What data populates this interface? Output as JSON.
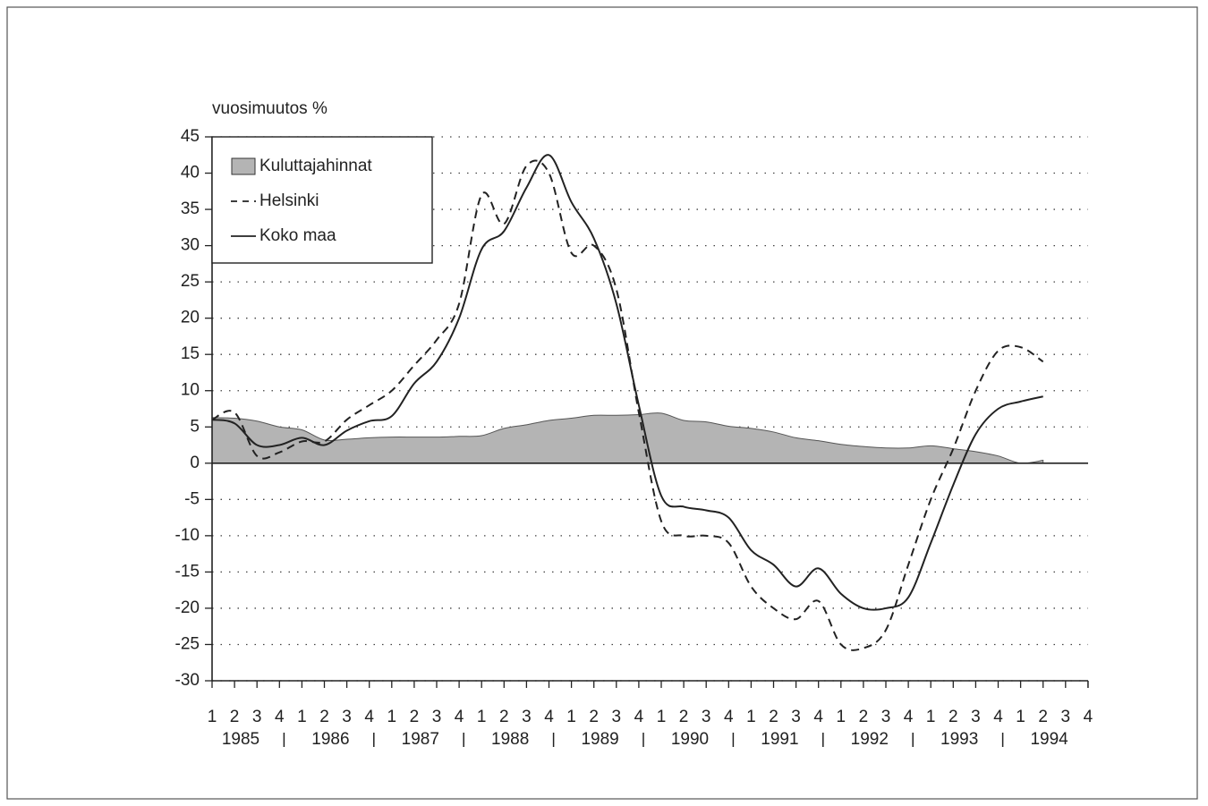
{
  "chart_data": {
    "type": "line",
    "ylabel": "vuosimuutos %",
    "categories": [
      "1",
      "2",
      "3",
      "4",
      "1",
      "2",
      "3",
      "4",
      "1",
      "2",
      "3",
      "4",
      "1",
      "2",
      "3",
      "4",
      "1",
      "2",
      "3",
      "4",
      "1",
      "2",
      "3",
      "4",
      "1",
      "2",
      "3",
      "4",
      "1",
      "2",
      "3",
      "4",
      "1",
      "2",
      "3",
      "4",
      "1",
      "2",
      "3",
      "4"
    ],
    "years": [
      "1985",
      "1986",
      "1987",
      "1988",
      "1989",
      "1990",
      "1991",
      "1992",
      "1993",
      "1994"
    ],
    "ylim": [
      -30,
      45
    ],
    "yticks": [
      -30,
      -25,
      -20,
      -15,
      -10,
      -5,
      0,
      5,
      10,
      15,
      20,
      25,
      30,
      35,
      40,
      45
    ],
    "grid": true,
    "legend": "upper left",
    "series": [
      {
        "name": "Kuluttajahinnat",
        "style": "area",
        "color": "#b4b4b4",
        "values": [
          6.3,
          6.2,
          5.8,
          5.0,
          4.6,
          3.2,
          3.3,
          3.5,
          3.6,
          3.6,
          3.6,
          3.7,
          3.8,
          4.8,
          5.3,
          5.9,
          6.2,
          6.6,
          6.6,
          6.7,
          6.9,
          5.9,
          5.7,
          5.1,
          4.8,
          4.3,
          3.5,
          3.1,
          2.6,
          2.3,
          2.1,
          2.1,
          2.4,
          2.0,
          1.6,
          1.0,
          0.0,
          0.4,
          null,
          null
        ]
      },
      {
        "name": "Helsinki",
        "style": "dashed",
        "color": "#222222",
        "values": [
          6.0,
          7.0,
          1.0,
          1.5,
          3.0,
          3.0,
          6.0,
          8.0,
          10.0,
          13.5,
          17.0,
          22.0,
          37.0,
          33.0,
          41.0,
          40.0,
          29.0,
          30.0,
          24.0,
          7.0,
          -8.0,
          -10.0,
          -10.0,
          -11.0,
          -17.0,
          -20.0,
          -21.5,
          -19.0,
          -25.0,
          -25.5,
          -23.0,
          -14.0,
          -5.0,
          2.0,
          10.0,
          15.5,
          16.0,
          14.0,
          null,
          null
        ]
      },
      {
        "name": "Koko maa",
        "style": "solid",
        "color": "#222222",
        "values": [
          6.0,
          5.5,
          2.5,
          2.5,
          3.5,
          2.5,
          4.5,
          5.8,
          6.5,
          11.0,
          14.0,
          20.0,
          29.5,
          32.0,
          38.0,
          42.5,
          36.0,
          31.0,
          22.0,
          8.0,
          -4.5,
          -6.0,
          -6.5,
          -7.5,
          -12.0,
          -14.0,
          -17.0,
          -14.5,
          -18.0,
          -20.0,
          -20.0,
          -18.5,
          -11.0,
          -3.0,
          4.0,
          7.5,
          8.5,
          9.2,
          null,
          null
        ]
      }
    ]
  }
}
